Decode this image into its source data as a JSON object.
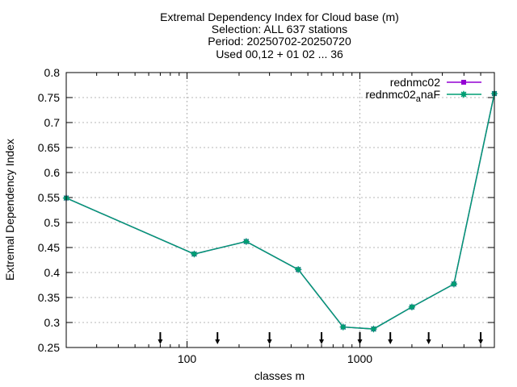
{
  "chart_data": {
    "type": "line",
    "title_lines": [
      "Extremal Dependency Index  for Cloud base (m)",
      "Selection: ALL    637 stations",
      "Period: 20250702-20250720",
      "Used 00,12 + 01 02 ... 36"
    ],
    "xlabel": "classes m",
    "ylabel": "Extremal Dependency Index",
    "xscale": "log",
    "xlim": [
      20,
      6000
    ],
    "ylim": [
      0.25,
      0.8
    ],
    "x_ticks": [
      100,
      1000
    ],
    "x_tick_labels": [
      "100",
      "1000"
    ],
    "y_ticks": [
      0.25,
      0.3,
      0.35,
      0.4,
      0.45,
      0.5,
      0.55,
      0.6,
      0.65,
      0.7,
      0.75,
      0.8
    ],
    "y_tick_labels": [
      "0.25",
      "0.3",
      "0.35",
      "0.4",
      "0.45",
      "0.5",
      "0.55",
      "0.6",
      "0.65",
      "0.7",
      "0.75",
      "0.8"
    ],
    "grid": true,
    "legend_position": "top-right",
    "series": [
      {
        "name": "rednmc02",
        "color": "#9400d3",
        "x": [
          20,
          110,
          220,
          440,
          800,
          1200,
          2000,
          3500,
          6000
        ],
        "y": [
          0.549,
          0.437,
          0.462,
          0.406,
          0.291,
          0.287,
          0.331,
          0.377,
          0.758
        ]
      },
      {
        "name_main": "rednmc02",
        "name_sub": "a",
        "name_suffix": "naF",
        "color": "#009e73",
        "x": [
          20,
          110,
          220,
          440,
          800,
          1200,
          2000,
          3500,
          6000
        ],
        "y": [
          0.549,
          0.437,
          0.462,
          0.406,
          0.291,
          0.287,
          0.331,
          0.377,
          0.758
        ]
      }
    ],
    "sample_arrows_x": [
      70,
      150,
      300,
      600,
      1000,
      1500,
      2500,
      5000
    ]
  }
}
